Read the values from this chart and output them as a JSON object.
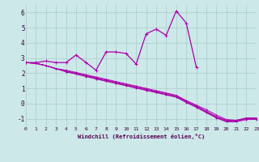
{
  "xlabel": "Windchill (Refroidissement éolien,°C)",
  "x_values": [
    0,
    1,
    2,
    3,
    4,
    5,
    6,
    7,
    8,
    9,
    10,
    11,
    12,
    13,
    14,
    15,
    16,
    17,
    18,
    19,
    20,
    21,
    22,
    23
  ],
  "line1": [
    2.7,
    2.7,
    2.8,
    2.7,
    2.7,
    3.2,
    2.7,
    2.2,
    3.4,
    3.4,
    3.3,
    2.6,
    4.6,
    4.9,
    4.5,
    6.1,
    5.3,
    2.4,
    null,
    null,
    null,
    null,
    null,
    null
  ],
  "line2": [
    2.7,
    2.65,
    2.5,
    2.3,
    2.2,
    2.05,
    1.9,
    1.75,
    1.6,
    1.45,
    1.3,
    1.15,
    1.0,
    0.85,
    0.7,
    0.55,
    0.2,
    -0.1,
    -0.4,
    -0.75,
    -1.05,
    -1.1,
    -0.95,
    -0.95
  ],
  "line3": [
    2.7,
    2.65,
    2.5,
    2.3,
    2.15,
    2.0,
    1.85,
    1.7,
    1.55,
    1.4,
    1.25,
    1.1,
    0.95,
    0.8,
    0.65,
    0.5,
    0.15,
    -0.15,
    -0.5,
    -0.85,
    -1.1,
    -1.1,
    -0.95,
    -0.95
  ],
  "line4": [
    2.7,
    2.65,
    2.5,
    2.3,
    2.1,
    1.95,
    1.8,
    1.65,
    1.5,
    1.35,
    1.2,
    1.05,
    0.9,
    0.75,
    0.6,
    0.45,
    0.1,
    -0.2,
    -0.55,
    -0.9,
    -1.15,
    -1.15,
    -1.0,
    -1.0
  ],
  "line5": [
    2.7,
    2.65,
    2.5,
    2.3,
    2.1,
    1.95,
    1.78,
    1.62,
    1.47,
    1.32,
    1.17,
    1.02,
    0.87,
    0.72,
    0.57,
    0.42,
    0.07,
    -0.25,
    -0.6,
    -0.95,
    -1.2,
    -1.2,
    -1.05,
    -1.05
  ],
  "line_color": "#aa00aa",
  "bg_color": "#cce8e8",
  "grid_color": "#aacccc",
  "ylim": [
    -1.5,
    6.5
  ],
  "yticks": [
    -1,
    0,
    1,
    2,
    3,
    4,
    5,
    6
  ],
  "xlim": [
    0,
    23
  ]
}
